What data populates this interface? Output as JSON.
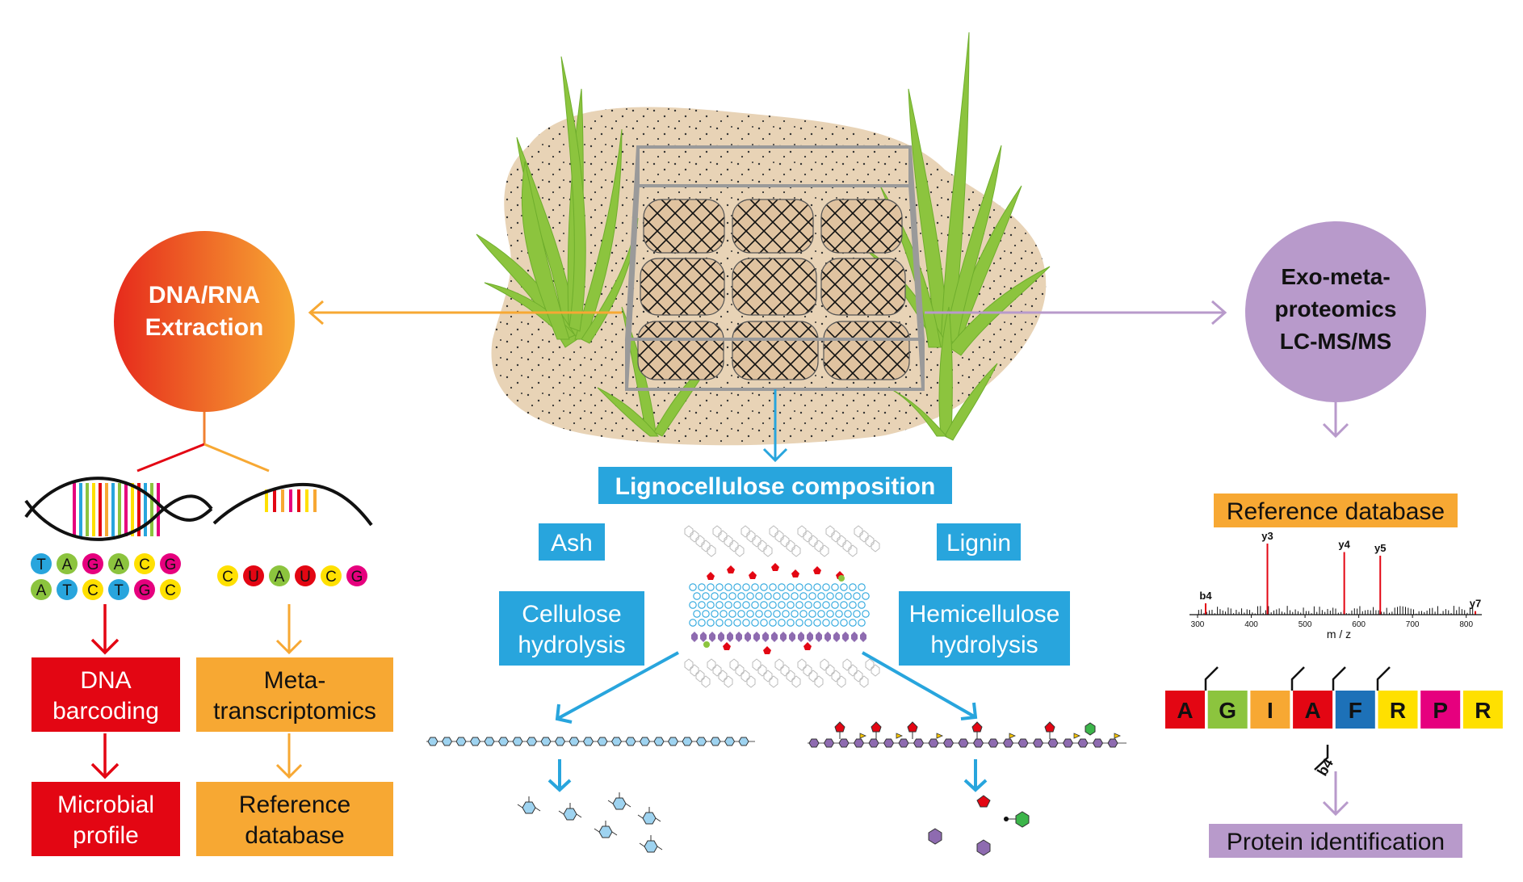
{
  "colors": {
    "red": "#e30613",
    "orange": "#f7a833",
    "blue": "#28a5dd",
    "purple": "#b89acb",
    "sand": "#e8d3b6",
    "grass": "#8cc43e",
    "frame": "#9a9a9a",
    "nuc_A": "#8cc43e",
    "nuc_T": "#28a5dd",
    "nuc_G": "#e6007e",
    "nuc_C": "#ffe000",
    "nuc_U": "#e30613"
  },
  "left": {
    "circle_line1": "DNA/RNA",
    "circle_line2": "Extraction",
    "dna_row1": [
      "T",
      "A",
      "G",
      "A",
      "C",
      "G"
    ],
    "dna_row2": [
      "A",
      "T",
      "C",
      "T",
      "G",
      "C"
    ],
    "rna_row": [
      "C",
      "U",
      "A",
      "U",
      "C",
      "G"
    ],
    "barcoding_line1": "DNA",
    "barcoding_line2": "barcoding",
    "metatrans_line1": "Meta-",
    "metatrans_line2": "transcriptomics",
    "microbial_line1": "Microbial",
    "microbial_line2": "profile",
    "refdb_line1": "Reference",
    "refdb_line2": "database"
  },
  "center": {
    "title": "Lignocellulose composition",
    "ash": "Ash",
    "lignin": "Lignin",
    "cellulose_line1": "Cellulose",
    "cellulose_line2": "hydrolysis",
    "hemi_line1": "Hemicellulose",
    "hemi_line2": "hydrolysis"
  },
  "right": {
    "circle_line1": "Exo-meta-",
    "circle_line2": "proteomics",
    "circle_line3": "LC-MS/MS",
    "refdb": "Reference database",
    "protein_id": "Protein identification",
    "b4_label": "b4",
    "peptide": [
      {
        "aa": "A",
        "color": "#e30613"
      },
      {
        "aa": "G",
        "color": "#8cc43e"
      },
      {
        "aa": "I",
        "color": "#f7a833"
      },
      {
        "aa": "A",
        "color": "#e30613"
      },
      {
        "aa": "F",
        "color": "#1d71b8"
      },
      {
        "aa": "R",
        "color": "#ffe000"
      },
      {
        "aa": "P",
        "color": "#e6007e"
      },
      {
        "aa": "R",
        "color": "#ffe000"
      }
    ]
  },
  "chart_data": {
    "type": "bar",
    "title": "",
    "xlabel": "m / z",
    "ylabel": "",
    "xlim": [
      300,
      820
    ],
    "xticks": [
      "300",
      "400",
      "500",
      "600",
      "700",
      "800"
    ],
    "peaks": [
      {
        "label": "b4",
        "x": 315,
        "y": 0.16
      },
      {
        "label": "y3",
        "x": 430,
        "y": 1.0
      },
      {
        "label": "y4",
        "x": 573,
        "y": 0.88
      },
      {
        "label": "y5",
        "x": 640,
        "y": 0.83
      },
      {
        "label": "y7",
        "x": 817,
        "y": 0.05
      }
    ]
  }
}
